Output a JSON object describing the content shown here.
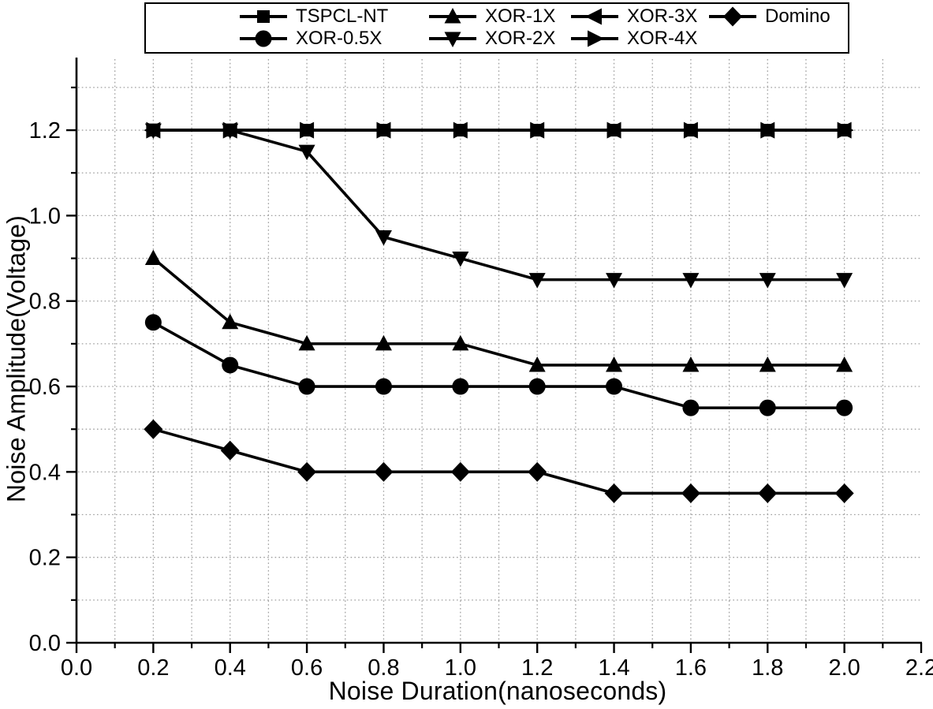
{
  "figure": {
    "background_color": "#ffffff",
    "ink_color": "#000000",
    "grid_color": "#9f9f9f"
  },
  "chart_data": {
    "type": "line",
    "title": "",
    "xlabel": "Noise Duration(nanoseconds)",
    "ylabel": "Noise Amplitude(Voltage)",
    "xlim": [
      0.0,
      2.2
    ],
    "ylim": [
      0.0,
      1.37
    ],
    "x_tick_labels": [
      "0.0",
      "0.2",
      "0.4",
      "0.6",
      "0.8",
      "1.0",
      "1.2",
      "1.4",
      "1.6",
      "1.8",
      "2.0",
      "2.2"
    ],
    "y_tick_labels": [
      "0.0",
      "0.2",
      "0.4",
      "0.6",
      "0.8",
      "1.0",
      "1.2"
    ],
    "major_tick_interval": 0.2,
    "minor_tick_interval": 0.1,
    "grid": {
      "visible": true,
      "style": "dotted",
      "interval": 0.1
    },
    "x": [
      0.2,
      0.4,
      0.6,
      0.8,
      1.0,
      1.2,
      1.4,
      1.6,
      1.8,
      2.0
    ],
    "series": [
      {
        "name": "TSPCL-NT",
        "marker": "square",
        "values": [
          1.2,
          1.2,
          1.2,
          1.2,
          1.2,
          1.2,
          1.2,
          1.2,
          1.2,
          1.2
        ]
      },
      {
        "name": "XOR-0.5X",
        "marker": "circle",
        "values": [
          0.75,
          0.65,
          0.6,
          0.6,
          0.6,
          0.6,
          0.6,
          0.55,
          0.55,
          0.55
        ]
      },
      {
        "name": "XOR-1X",
        "marker": "triangle-up",
        "values": [
          0.9,
          0.75,
          0.7,
          0.7,
          0.7,
          0.65,
          0.65,
          0.65,
          0.65,
          0.65
        ]
      },
      {
        "name": "XOR-2X",
        "marker": "triangle-down",
        "values": [
          1.2,
          1.2,
          1.15,
          0.95,
          0.9,
          0.85,
          0.85,
          0.85,
          0.85,
          0.85
        ]
      },
      {
        "name": "XOR-3X",
        "marker": "triangle-left",
        "values": [
          1.2,
          1.2,
          1.2,
          1.2,
          1.2,
          1.2,
          1.2,
          1.2,
          1.2,
          1.2
        ]
      },
      {
        "name": "XOR-4X",
        "marker": "triangle-right",
        "values": [
          1.2,
          1.2,
          1.2,
          1.2,
          1.2,
          1.2,
          1.2,
          1.2,
          1.2,
          1.2
        ]
      },
      {
        "name": "Domino",
        "marker": "diamond",
        "values": [
          0.5,
          0.45,
          0.4,
          0.4,
          0.4,
          0.4,
          0.35,
          0.35,
          0.35,
          0.35
        ]
      }
    ],
    "legend": {
      "position": "top-center",
      "rows": 2,
      "order": "column-major",
      "columns": [
        [
          "TSPCL-NT",
          "XOR-0.5X"
        ],
        [
          "XOR-1X",
          "XOR-2X"
        ],
        [
          "XOR-3X",
          "XOR-4X"
        ],
        [
          "Domino"
        ]
      ]
    }
  }
}
